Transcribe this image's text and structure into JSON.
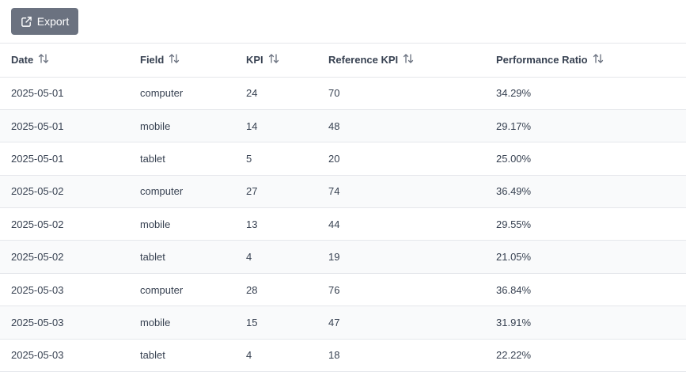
{
  "toolbar": {
    "export_label": "Export",
    "export_icon": "external-link-icon",
    "button_color": "#6b7280"
  },
  "table": {
    "columns": [
      {
        "label": "Date",
        "sort_icon": "sort-icon"
      },
      {
        "label": "Field",
        "sort_icon": "sort-icon"
      },
      {
        "label": "KPI",
        "sort_icon": "sort-icon"
      },
      {
        "label": "Reference KPI",
        "sort_icon": "sort-icon"
      },
      {
        "label": "Performance Ratio",
        "sort_icon": "sort-icon"
      }
    ],
    "rows": [
      [
        "2025-05-01",
        "computer",
        "24",
        "70",
        "34.29%"
      ],
      [
        "2025-05-01",
        "mobile",
        "14",
        "48",
        "29.17%"
      ],
      [
        "2025-05-01",
        "tablet",
        "5",
        "20",
        "25.00%"
      ],
      [
        "2025-05-02",
        "computer",
        "27",
        "74",
        "36.49%"
      ],
      [
        "2025-05-02",
        "mobile",
        "13",
        "44",
        "29.55%"
      ],
      [
        "2025-05-02",
        "tablet",
        "4",
        "19",
        "21.05%"
      ],
      [
        "2025-05-03",
        "computer",
        "28",
        "76",
        "36.84%"
      ],
      [
        "2025-05-03",
        "mobile",
        "15",
        "47",
        "31.91%"
      ],
      [
        "2025-05-03",
        "tablet",
        "4",
        "18",
        "22.22%"
      ]
    ]
  }
}
